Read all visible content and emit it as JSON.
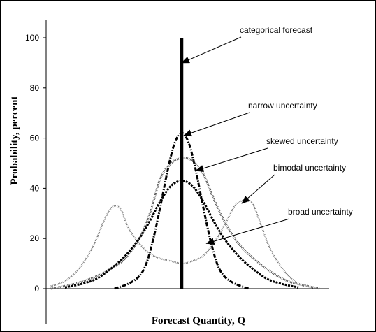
{
  "chart_data": {
    "type": "line",
    "title": "",
    "xlabel": "Forecast Quantity, Q",
    "ylabel": "Probability, percent",
    "ylim": [
      0,
      100
    ],
    "yticks": [
      {
        "value": 0,
        "label": "0"
      },
      {
        "value": 20,
        "label": "20"
      },
      {
        "value": 40,
        "label": "40"
      },
      {
        "value": 60,
        "label": "60"
      },
      {
        "value": 80,
        "label": "80"
      },
      {
        "value": 100,
        "label": "100"
      }
    ],
    "xlim": [
      -200,
      200
    ],
    "grid": false,
    "series": [
      {
        "name": "categorical forecast",
        "style": "solid-thick",
        "color": "#000000",
        "x": [
          0,
          0
        ],
        "y": [
          0,
          100
        ]
      },
      {
        "name": "narrow uncertainty",
        "style": "dash-dot",
        "color": "#000000",
        "x": [
          -95,
          -75,
          -60,
          -50,
          -40,
          -30,
          -20,
          -10,
          0,
          10,
          20,
          30,
          40,
          50,
          60,
          75,
          95
        ],
        "y": [
          0,
          2,
          5,
          10,
          20,
          33,
          47,
          58,
          62,
          58,
          47,
          33,
          20,
          10,
          5,
          2,
          0
        ]
      },
      {
        "name": "skewed uncertainty",
        "style": "dotted-light",
        "color": "#555555",
        "x": [
          -185,
          -150,
          -120,
          -100,
          -80,
          -60,
          -45,
          -30,
          -15,
          0,
          15,
          30,
          45,
          60,
          75,
          90,
          110,
          130,
          150,
          170,
          195
        ],
        "y": [
          0,
          2,
          5,
          8,
          12,
          20,
          30,
          44,
          50,
          52,
          51,
          46,
          36,
          27,
          20,
          15,
          10,
          6,
          3,
          1.5,
          0
        ]
      },
      {
        "name": "bimodal uncertainty",
        "style": "dotted-grey",
        "color": "#777777",
        "x": [
          -185,
          -165,
          -145,
          -125,
          -110,
          -100,
          -92,
          -85,
          -75,
          -60,
          -45,
          -30,
          -15,
          0,
          15,
          30,
          45,
          60,
          75,
          85,
          92,
          100,
          110,
          125,
          145,
          165,
          185
        ],
        "y": [
          1,
          3,
          8,
          17,
          27,
          32,
          33,
          31,
          24,
          18,
          14,
          12,
          11,
          10,
          11,
          13,
          18,
          25,
          33,
          35,
          35,
          34,
          27,
          16,
          7,
          2,
          0.5
        ]
      },
      {
        "name": "broad uncertainty",
        "style": "dashed",
        "color": "#000000",
        "x": [
          -165,
          -140,
          -120,
          -100,
          -80,
          -60,
          -45,
          -30,
          -15,
          0,
          15,
          30,
          45,
          60,
          80,
          100,
          120,
          140,
          165
        ],
        "y": [
          0.5,
          2,
          4,
          8,
          13,
          20,
          27,
          35,
          41,
          43,
          41,
          35,
          27,
          20,
          13,
          8,
          4,
          2,
          0.5
        ]
      }
    ],
    "annotations": [
      {
        "label": "categorical forecast",
        "points_to": {
          "x": 0,
          "y": 90
        }
      },
      {
        "label": "narrow uncertainty",
        "points_to": {
          "x": 3,
          "y": 61
        }
      },
      {
        "label": "skewed uncertainty",
        "points_to": {
          "x": 20,
          "y": 47
        }
      },
      {
        "label": "bimodal uncertainty",
        "points_to": {
          "x": 85,
          "y": 34
        }
      },
      {
        "label": "broad uncertainty",
        "points_to": {
          "x": 35,
          "y": 18
        }
      }
    ]
  }
}
